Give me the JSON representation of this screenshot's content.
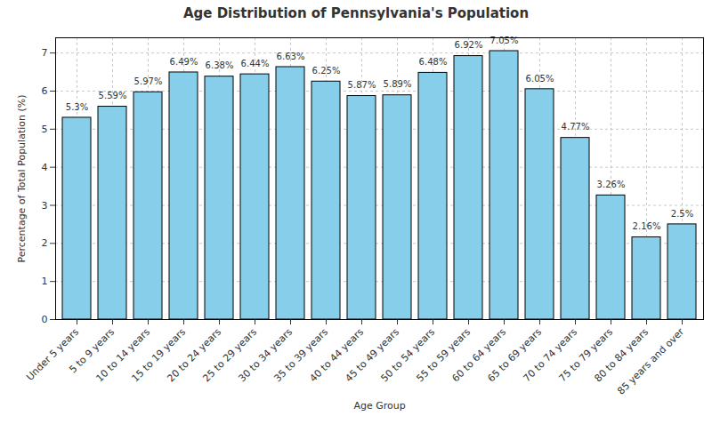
{
  "chart_data": {
    "type": "bar",
    "title": "Age Distribution of Pennsylvania's Population",
    "x_label": "Age Group",
    "y_label": "Percentage of Total Population (%)",
    "categories": [
      "Under 5 years",
      "5 to 9 years",
      "10 to 14 years",
      "15 to 19 years",
      "20 to 24 years",
      "25 to 29 years",
      "30 to 34 years",
      "35 to 39 years",
      "40 to 44 years",
      "45 to 49 years",
      "50 to 54 years",
      "55 to 59 years",
      "60 to 64 years",
      "65 to 69 years",
      "70 to 74 years",
      "75 to 79 years",
      "80 to 84 years",
      "85 years and over"
    ],
    "values": [
      5.3,
      5.59,
      5.97,
      6.49,
      6.38,
      6.44,
      6.63,
      6.25,
      5.87,
      5.89,
      6.48,
      6.92,
      7.05,
      6.05,
      4.77,
      3.26,
      2.16,
      2.5
    ],
    "value_labels": [
      "5.3%",
      "5.59%",
      "5.97%",
      "6.49%",
      "6.38%",
      "6.44%",
      "6.63%",
      "6.25%",
      "5.87%",
      "5.89%",
      "6.48%",
      "6.92%",
      "7.05%",
      "6.05%",
      "4.77%",
      "3.26%",
      "2.16%",
      "2.5%"
    ],
    "color": "#87ceeb",
    "ylim": [
      0,
      7.4
    ],
    "yticks": [
      0,
      1,
      2,
      3,
      4,
      5,
      6,
      7
    ],
    "grid": true,
    "data_labels": true
  }
}
